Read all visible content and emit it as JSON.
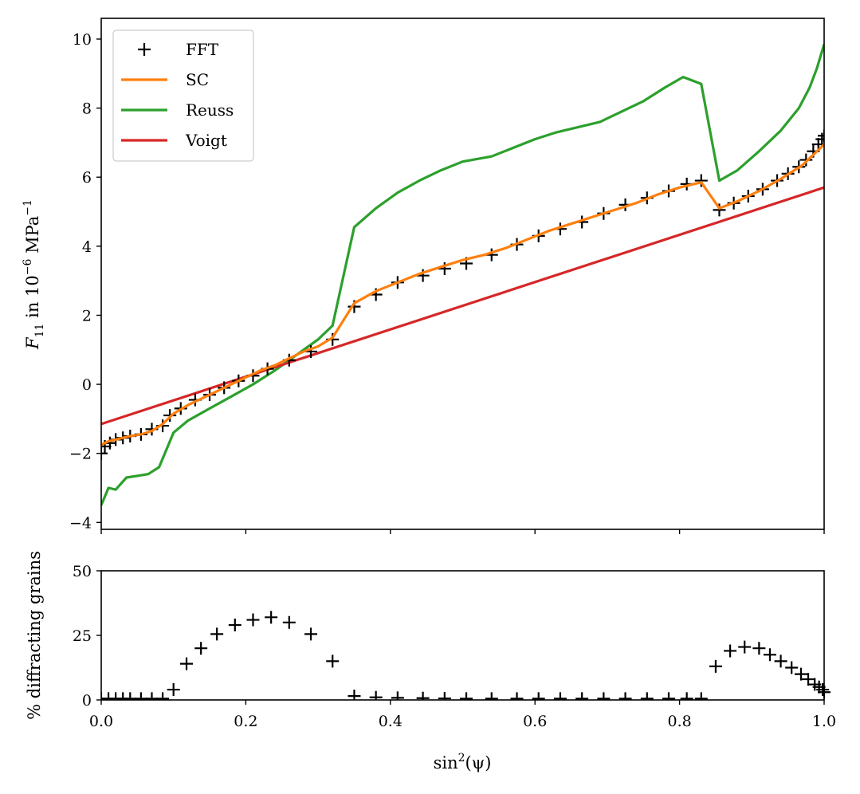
{
  "chart_data": [
    {
      "type": "line",
      "ylabel_parts": {
        "symbol": "F",
        "subscript": "11",
        "text": " in 10",
        "exponent": "−6",
        "unit": " MPa",
        "unit_exponent": "−1"
      },
      "xlim": [
        0,
        1
      ],
      "ylim": [
        -4.2,
        10.6
      ],
      "x_ticks": [
        0,
        0.2,
        0.4,
        0.6,
        0.8,
        1.0
      ],
      "y_ticks": [
        -4,
        -2,
        0,
        2,
        4,
        6,
        8,
        10
      ],
      "y_tick_labels": [
        "−4",
        "−2",
        "0",
        "2",
        "4",
        "6",
        "8",
        "10"
      ],
      "legend_position": "top-left",
      "colors": {
        "FFT": "#000000",
        "SC": "#ff7f0e",
        "Reuss": "#2ca02c",
        "Voigt": "#d62728"
      },
      "series": [
        {
          "name": "FFT",
          "style": "markers",
          "marker": "plus",
          "x": [
            0.0,
            0.005,
            0.012,
            0.02,
            0.03,
            0.04,
            0.055,
            0.07,
            0.085,
            0.095,
            0.11,
            0.13,
            0.15,
            0.17,
            0.19,
            0.21,
            0.23,
            0.26,
            0.29,
            0.32,
            0.35,
            0.38,
            0.41,
            0.445,
            0.475,
            0.505,
            0.54,
            0.575,
            0.605,
            0.635,
            0.665,
            0.695,
            0.725,
            0.755,
            0.785,
            0.81,
            0.83,
            0.855,
            0.875,
            0.895,
            0.915,
            0.935,
            0.95,
            0.965,
            0.975,
            0.985,
            0.992,
            0.997,
            1.0
          ],
          "y": [
            -2.0,
            -1.8,
            -1.7,
            -1.6,
            -1.55,
            -1.5,
            -1.45,
            -1.3,
            -1.2,
            -0.9,
            -0.7,
            -0.45,
            -0.3,
            -0.1,
            0.1,
            0.25,
            0.45,
            0.7,
            0.95,
            1.3,
            2.25,
            2.6,
            2.95,
            3.15,
            3.35,
            3.5,
            3.75,
            4.05,
            4.3,
            4.5,
            4.7,
            4.95,
            5.2,
            5.4,
            5.6,
            5.8,
            5.9,
            5.05,
            5.25,
            5.45,
            5.65,
            5.9,
            6.1,
            6.3,
            6.5,
            6.75,
            6.95,
            7.1,
            7.2
          ]
        },
        {
          "name": "SC",
          "style": "line",
          "x": [
            0.0,
            0.01,
            0.02,
            0.03,
            0.04,
            0.055,
            0.07,
            0.085,
            0.1,
            0.12,
            0.14,
            0.16,
            0.18,
            0.2,
            0.22,
            0.24,
            0.26,
            0.28,
            0.3,
            0.32,
            0.35,
            0.38,
            0.41,
            0.44,
            0.47,
            0.5,
            0.53,
            0.56,
            0.59,
            0.62,
            0.65,
            0.68,
            0.71,
            0.74,
            0.77,
            0.8,
            0.83,
            0.855,
            0.88,
            0.91,
            0.94,
            0.97,
            1.0
          ],
          "y": [
            -1.75,
            -1.65,
            -1.6,
            -1.55,
            -1.5,
            -1.45,
            -1.35,
            -1.15,
            -0.85,
            -0.6,
            -0.4,
            -0.2,
            0.0,
            0.2,
            0.4,
            0.55,
            0.75,
            0.95,
            1.1,
            1.35,
            2.35,
            2.7,
            2.95,
            3.2,
            3.4,
            3.6,
            3.75,
            3.95,
            4.2,
            4.45,
            4.65,
            4.85,
            5.05,
            5.25,
            5.5,
            5.7,
            5.85,
            5.1,
            5.3,
            5.6,
            5.95,
            6.35,
            6.95
          ]
        },
        {
          "name": "Reuss",
          "style": "line",
          "x": [
            0.0,
            0.01,
            0.02,
            0.035,
            0.05,
            0.065,
            0.08,
            0.1,
            0.12,
            0.15,
            0.18,
            0.21,
            0.24,
            0.27,
            0.3,
            0.32,
            0.35,
            0.38,
            0.41,
            0.44,
            0.47,
            0.5,
            0.54,
            0.57,
            0.6,
            0.63,
            0.66,
            0.69,
            0.72,
            0.75,
            0.78,
            0.805,
            0.83,
            0.855,
            0.88,
            0.91,
            0.94,
            0.965,
            0.98,
            0.99,
            1.0
          ],
          "y": [
            -3.5,
            -3.0,
            -3.05,
            -2.7,
            -2.65,
            -2.6,
            -2.4,
            -1.4,
            -1.05,
            -0.7,
            -0.35,
            0.0,
            0.4,
            0.85,
            1.3,
            1.7,
            4.55,
            5.1,
            5.55,
            5.9,
            6.2,
            6.45,
            6.6,
            6.85,
            7.1,
            7.3,
            7.45,
            7.6,
            7.9,
            8.2,
            8.6,
            8.9,
            8.7,
            5.9,
            6.2,
            6.75,
            7.35,
            8.0,
            8.6,
            9.15,
            9.85
          ]
        },
        {
          "name": "Voigt",
          "style": "line",
          "x": [
            0,
            1
          ],
          "y": [
            -1.15,
            5.7
          ]
        }
      ]
    },
    {
      "type": "scatter",
      "xlabel_parts": {
        "text": "sin",
        "exponent": "2",
        "argument": "(ψ)"
      },
      "ylabel": "% diffracting grains",
      "xlim": [
        0,
        1
      ],
      "ylim": [
        0,
        50
      ],
      "x_ticks": [
        0,
        0.2,
        0.4,
        0.6,
        0.8,
        1.0
      ],
      "x_tick_labels": [
        "0.0",
        "0.2",
        "0.4",
        "0.6",
        "0.8",
        "1.0"
      ],
      "y_ticks": [
        0,
        25,
        50
      ],
      "y_tick_labels": [
        "0",
        "25",
        "50"
      ],
      "series": [
        {
          "name": "FFT",
          "style": "markers",
          "marker": "plus",
          "x": [
            0.0,
            0.01,
            0.02,
            0.03,
            0.04,
            0.055,
            0.07,
            0.085,
            0.1,
            0.118,
            0.138,
            0.16,
            0.185,
            0.21,
            0.235,
            0.26,
            0.29,
            0.32,
            0.35,
            0.38,
            0.41,
            0.445,
            0.475,
            0.505,
            0.54,
            0.575,
            0.605,
            0.635,
            0.665,
            0.695,
            0.725,
            0.755,
            0.785,
            0.81,
            0.83,
            0.85,
            0.87,
            0.89,
            0.91,
            0.925,
            0.94,
            0.955,
            0.968,
            0.978,
            0.987,
            0.993,
            0.998,
            1.0
          ],
          "y": [
            0.5,
            0.5,
            0.5,
            0.5,
            0.5,
            0.5,
            0.5,
            0.5,
            4,
            14,
            20,
            25.5,
            29,
            31,
            32,
            30,
            25.5,
            15,
            1.5,
            1,
            0.8,
            0.7,
            0.6,
            0.5,
            0.5,
            0.5,
            0.5,
            0.5,
            0.5,
            0.5,
            0.5,
            0.5,
            0.5,
            0.5,
            0.5,
            13,
            19,
            20.5,
            20,
            17.5,
            15,
            12.5,
            10,
            8,
            6,
            5,
            4,
            3
          ]
        }
      ]
    }
  ]
}
